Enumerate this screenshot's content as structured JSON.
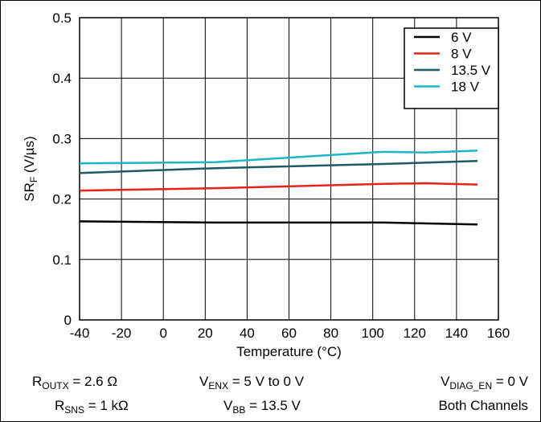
{
  "chart_data": {
    "type": "line",
    "title": "",
    "xlabel": "Temperature (°C)",
    "ylabel_main": "SR",
    "ylabel_sub": "F",
    "ylabel_unit": " (V/µs)",
    "xlim": [
      -40,
      160
    ],
    "ylim": [
      0,
      0.5
    ],
    "xticks": [
      -40,
      -20,
      0,
      20,
      40,
      60,
      80,
      100,
      120,
      140,
      160
    ],
    "yticks": [
      0,
      0.1,
      0.2,
      0.3,
      0.4,
      0.5
    ],
    "xtick_labels": [
      "-40",
      "-20",
      "0",
      "20",
      "40",
      "60",
      "80",
      "100",
      "120",
      "140",
      "160"
    ],
    "ytick_labels": [
      "0",
      "0.1",
      "0.2",
      "0.3",
      "0.4",
      "0.5"
    ],
    "grid": true,
    "legend_position": "top-right",
    "series": [
      {
        "name": "6 V",
        "color": "#000000",
        "x": [
          -40,
          25,
          105,
          150
        ],
        "y": [
          0.163,
          0.161,
          0.161,
          0.158
        ]
      },
      {
        "name": "8 V",
        "color": "#e8211b",
        "x": [
          -40,
          25,
          105,
          125,
          150
        ],
        "y": [
          0.214,
          0.218,
          0.225,
          0.226,
          0.224
        ]
      },
      {
        "name": "13.5 V",
        "color": "#1f5a63",
        "x": [
          -40,
          25,
          105,
          150
        ],
        "y": [
          0.243,
          0.251,
          0.258,
          0.263
        ]
      },
      {
        "name": "18 V",
        "color": "#1cb6c9",
        "x": [
          -40,
          25,
          105,
          125,
          150
        ],
        "y": [
          0.259,
          0.261,
          0.278,
          0.277,
          0.28
        ]
      }
    ]
  },
  "conditions": {
    "routx": {
      "main": "R",
      "sub": "OUTX",
      "rest": " = 2.6 Ω"
    },
    "venx": {
      "main": "V",
      "sub": "ENX",
      "rest": " = 5 V to 0 V"
    },
    "vdiag": {
      "main": "V",
      "sub": "DIAG_EN",
      "rest": " = 0 V"
    },
    "rsns": {
      "main": "R",
      "sub": "SNS",
      "rest": " = 1 kΩ"
    },
    "vbb": {
      "main": "V",
      "sub": "BB",
      "rest": " = 13.5 V"
    },
    "channels": "Both Channels"
  }
}
